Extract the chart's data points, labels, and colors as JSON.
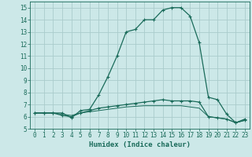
{
  "title": "",
  "xlabel": "Humidex (Indice chaleur)",
  "ylabel": "",
  "background_color": "#cce8e8",
  "grid_color": "#aacccc",
  "line_color": "#1a6b5a",
  "xlim": [
    -0.5,
    23.5
  ],
  "ylim": [
    5,
    15.5
  ],
  "xticks": [
    0,
    1,
    2,
    3,
    4,
    5,
    6,
    7,
    8,
    9,
    10,
    11,
    12,
    13,
    14,
    15,
    16,
    17,
    18,
    19,
    20,
    21,
    22,
    23
  ],
  "yticks": [
    5,
    6,
    7,
    8,
    9,
    10,
    11,
    12,
    13,
    14,
    15
  ],
  "line1_x": [
    0,
    1,
    2,
    3,
    4,
    5,
    6,
    7,
    8,
    9,
    10,
    11,
    12,
    13,
    14,
    15,
    16,
    17,
    18,
    19,
    20,
    21,
    22,
    23
  ],
  "line1_y": [
    6.3,
    6.3,
    6.3,
    6.3,
    5.9,
    6.5,
    6.6,
    7.8,
    9.3,
    11.0,
    13.0,
    13.2,
    14.0,
    14.0,
    14.8,
    15.0,
    15.0,
    14.3,
    12.1,
    7.6,
    7.4,
    6.2,
    5.5,
    5.8
  ],
  "line2_x": [
    0,
    1,
    2,
    3,
    4,
    5,
    6,
    7,
    8,
    9,
    10,
    11,
    12,
    13,
    14,
    15,
    16,
    17,
    18,
    19,
    20,
    21,
    22,
    23
  ],
  "line2_y": [
    6.3,
    6.3,
    6.3,
    6.1,
    6.0,
    6.3,
    6.5,
    6.7,
    6.8,
    6.9,
    7.0,
    7.1,
    7.2,
    7.3,
    7.4,
    7.3,
    7.3,
    7.3,
    7.2,
    6.0,
    5.9,
    5.8,
    5.5,
    5.7
  ],
  "line3_x": [
    0,
    1,
    2,
    3,
    4,
    5,
    6,
    7,
    8,
    9,
    10,
    11,
    12,
    13,
    14,
    15,
    16,
    17,
    18,
    19,
    20,
    21,
    22,
    23
  ],
  "line3_y": [
    6.3,
    6.3,
    6.3,
    6.2,
    6.1,
    6.3,
    6.4,
    6.5,
    6.6,
    6.7,
    6.8,
    6.85,
    6.9,
    6.9,
    6.9,
    6.9,
    6.9,
    6.8,
    6.7,
    6.0,
    5.9,
    5.8,
    5.5,
    5.7
  ]
}
